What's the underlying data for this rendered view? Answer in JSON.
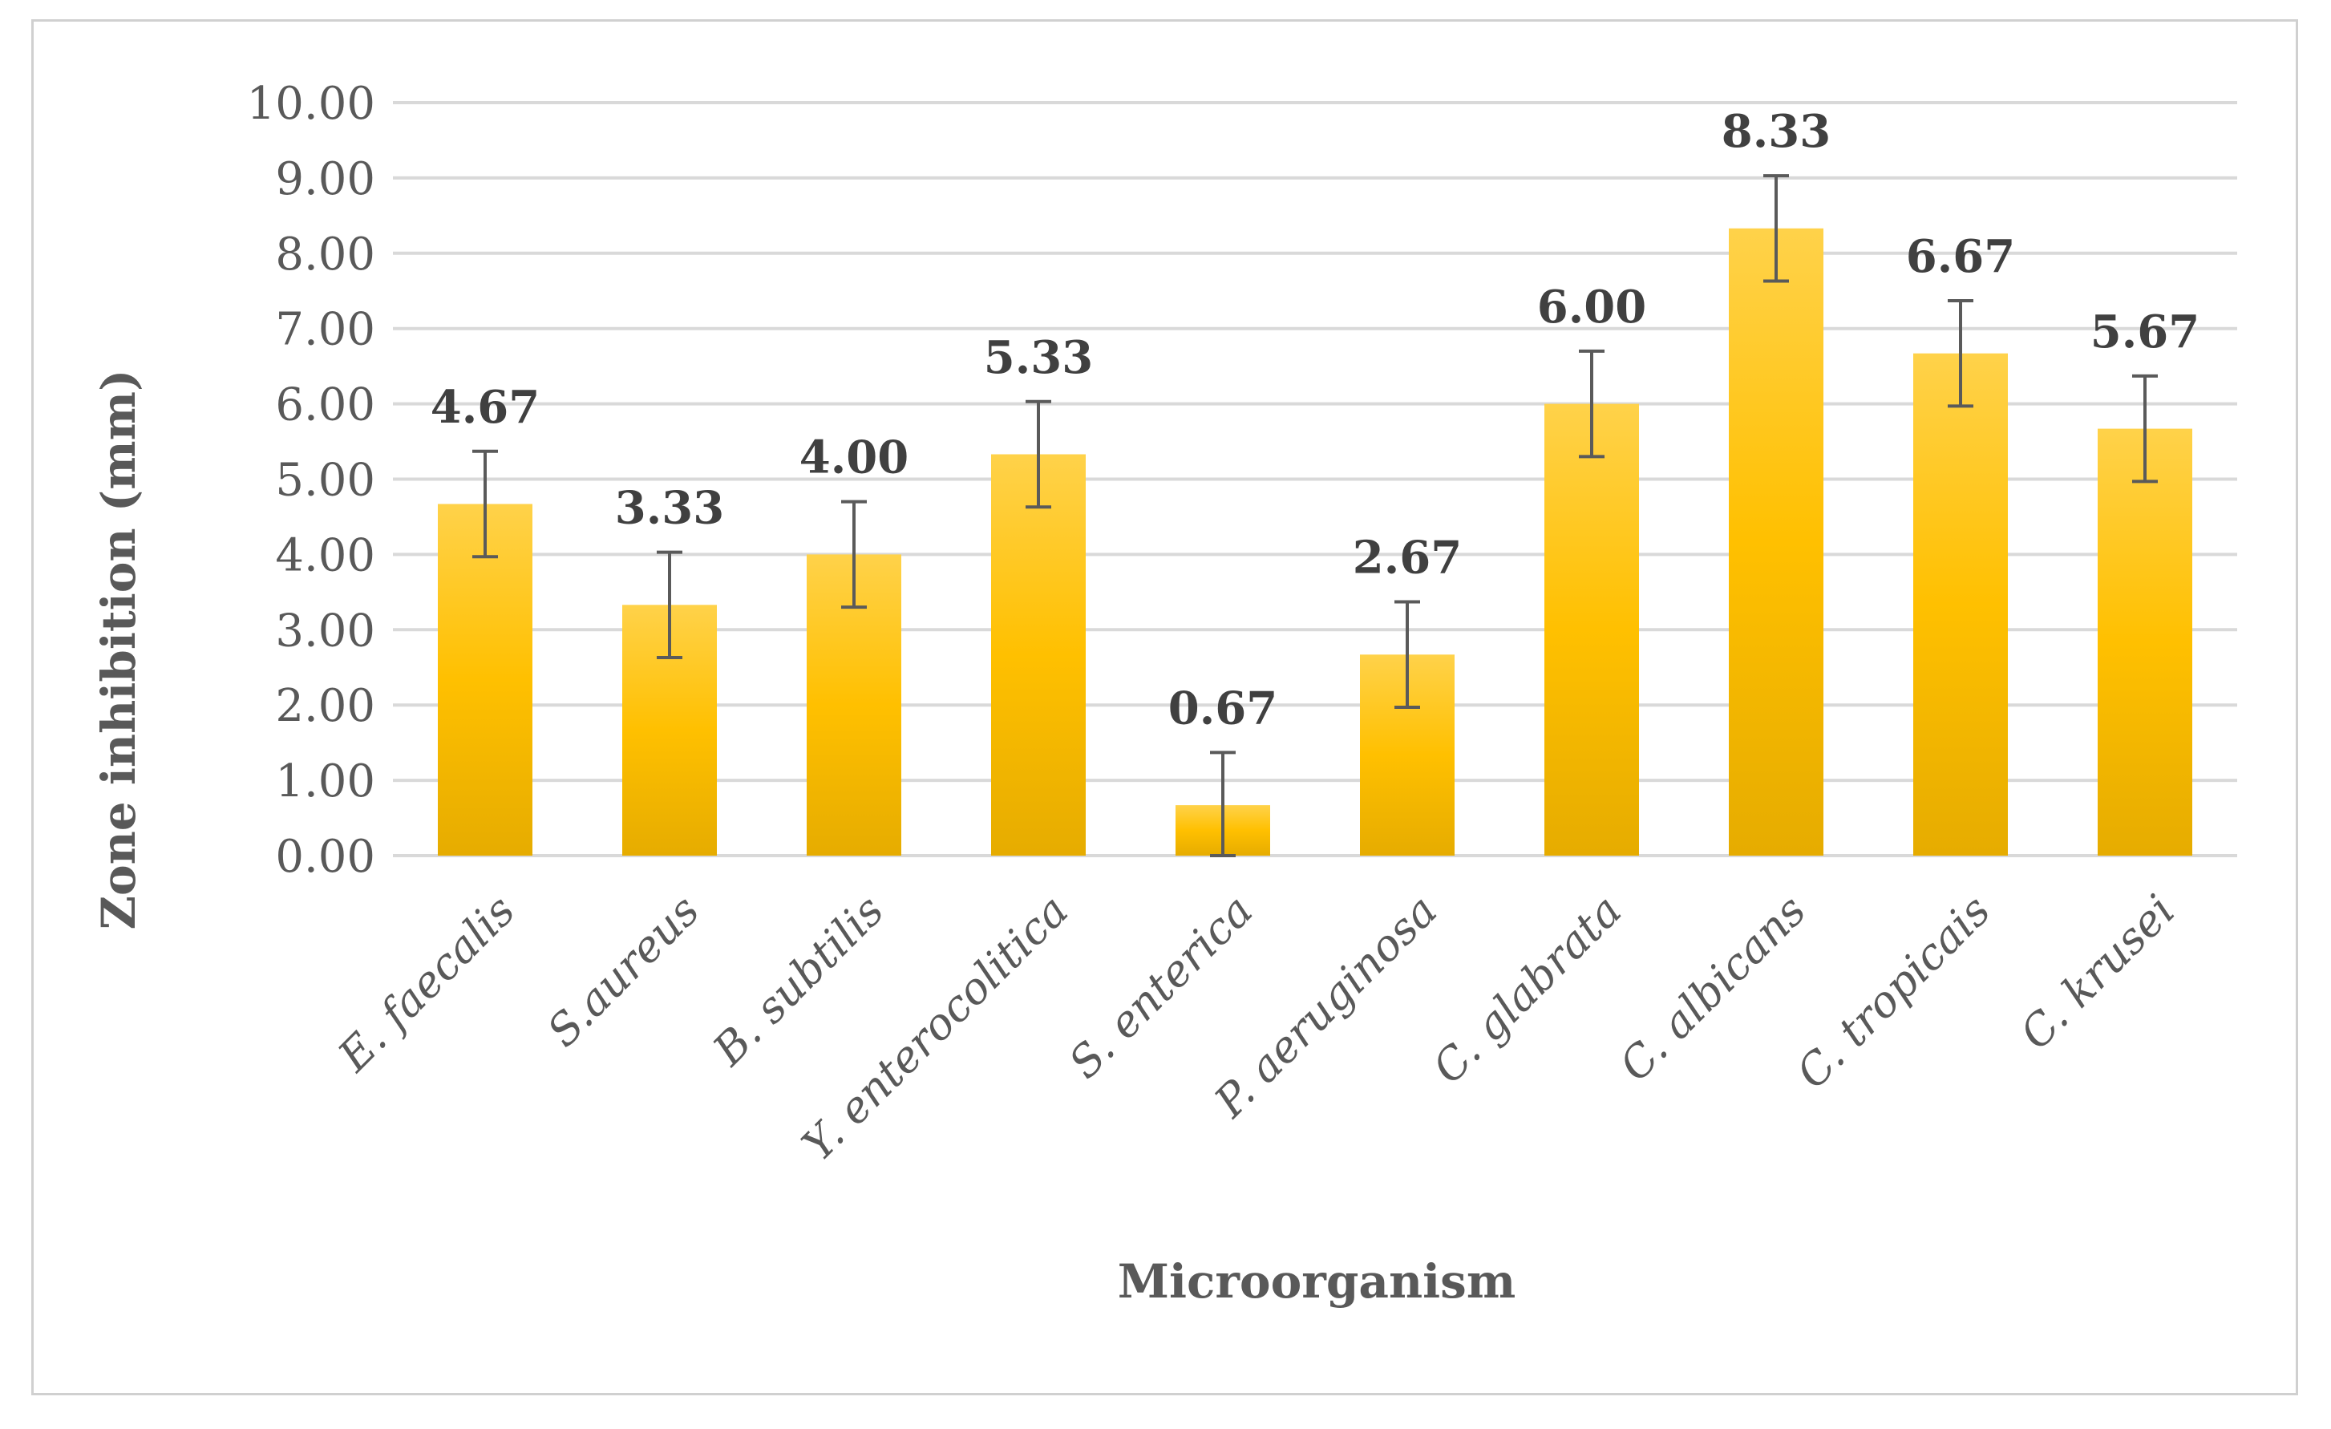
{
  "chart_data": {
    "type": "bar",
    "title": "",
    "xlabel": "Microorganism",
    "ylabel": "Zone inhibition (mm)",
    "ylim": [
      0,
      10
    ],
    "yticks": [
      "0.00",
      "1.00",
      "2.00",
      "3.00",
      "4.00",
      "5.00",
      "6.00",
      "7.00",
      "8.00",
      "9.00",
      "10.00"
    ],
    "grid": true,
    "categories": [
      "E. faecalis",
      "S.aureus",
      "B. subtilis",
      "Y. enterocolitica",
      "S. enterica",
      "P. aeruginosa",
      "C. glabrata",
      "C. albicans",
      "C. tropicais",
      "C. krusei"
    ],
    "values": [
      4.67,
      3.33,
      4.0,
      5.33,
      0.67,
      2.67,
      6.0,
      8.33,
      6.67,
      5.67
    ],
    "value_labels": [
      "4.67",
      "3.33",
      "4.00",
      "5.33",
      "0.67",
      "2.67",
      "6.00",
      "8.33",
      "6.67",
      "5.67"
    ],
    "errors": [
      0.7,
      0.7,
      0.7,
      0.7,
      0.7,
      0.7,
      0.7,
      0.7,
      0.7,
      0.7
    ],
    "colors": {
      "bar_top": "#ffd24a",
      "bar_mid": "#ffc000",
      "bar_bottom": "#e6ac00",
      "grid": "#d9d9d9",
      "error": "#5a5a5a"
    }
  }
}
